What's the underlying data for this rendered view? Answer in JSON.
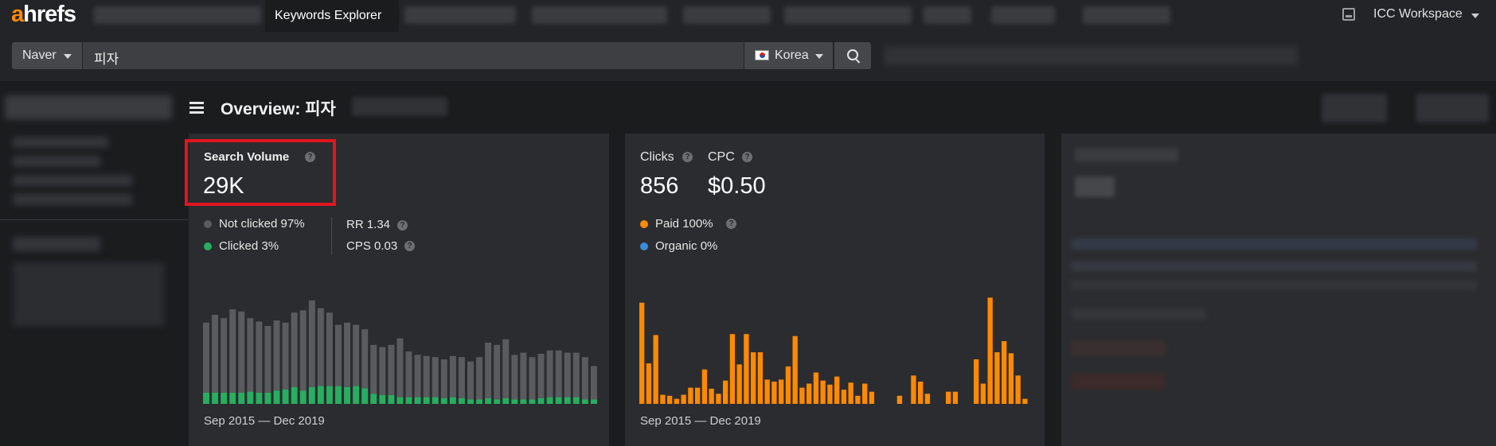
{
  "topnav": {
    "logo_a": "a",
    "logo_rest": "hrefs",
    "active_tab": "Keywords Explorer",
    "workspace": "ICC Workspace"
  },
  "search": {
    "engine": "Naver",
    "query": "피자",
    "country": "Korea"
  },
  "overview": {
    "title": "Overview: 피자"
  },
  "search_volume": {
    "label": "Search Volume",
    "value": "29K",
    "not_clicked": "Not clicked 97%",
    "clicked": "Clicked 3%",
    "rr": "RR 1.34",
    "cps": "CPS 0.03",
    "range": "Sep 2015 — Dec 2019"
  },
  "clicks": {
    "clicks_label": "Clicks",
    "clicks_value": "856",
    "cpc_label": "CPC",
    "cpc_value": "$0.50",
    "paid": "Paid 100%",
    "organic": "Organic 0%",
    "range": "Sep 2015 — Dec 2019"
  },
  "colors": {
    "accent": "#ff8a00",
    "not_clicked": "#5a5b5e",
    "clicked": "#27ae60",
    "paid": "#ff8a00",
    "organic": "#3a8bdc"
  },
  "chart_data": [
    {
      "type": "bar",
      "stacked": true,
      "series": [
        {
          "name": "Not clicked",
          "values": [
            63,
            70,
            67,
            75,
            73,
            66,
            64,
            60,
            63,
            60,
            67,
            72,
            78,
            70,
            66,
            55,
            58,
            55,
            53,
            44,
            43,
            45,
            53,
            41,
            38,
            37,
            36,
            35,
            37,
            37,
            34,
            38,
            50,
            49,
            53,
            40,
            42,
            38,
            40,
            42,
            42,
            40,
            40,
            38,
            30
          ]
        },
        {
          "name": "Clicked",
          "values": [
            10,
            10,
            10,
            10,
            10,
            11,
            10,
            10,
            12,
            13,
            15,
            12,
            15,
            16,
            16,
            16,
            15,
            16,
            14,
            9,
            8,
            8,
            6,
            6,
            6,
            6,
            6,
            5,
            6,
            5,
            4,
            4,
            5,
            4,
            5,
            4,
            4,
            4,
            5,
            6,
            6,
            6,
            6,
            4,
            4
          ]
        }
      ]
    },
    {
      "type": "bar",
      "series": [
        {
          "name": "Paid",
          "values": [
            100,
            40,
            68,
            9,
            8,
            5,
            9,
            16,
            16,
            34,
            15,
            10,
            23,
            69,
            39,
            69,
            51,
            51,
            24,
            22,
            24,
            37,
            67,
            16,
            20,
            31,
            23,
            19,
            27,
            14,
            21,
            8,
            20,
            12,
            0,
            0,
            0,
            8,
            0,
            28,
            22,
            10,
            0,
            0,
            12,
            12,
            0,
            0,
            44,
            20,
            105,
            51,
            62,
            50,
            28,
            5
          ]
        }
      ]
    }
  ]
}
